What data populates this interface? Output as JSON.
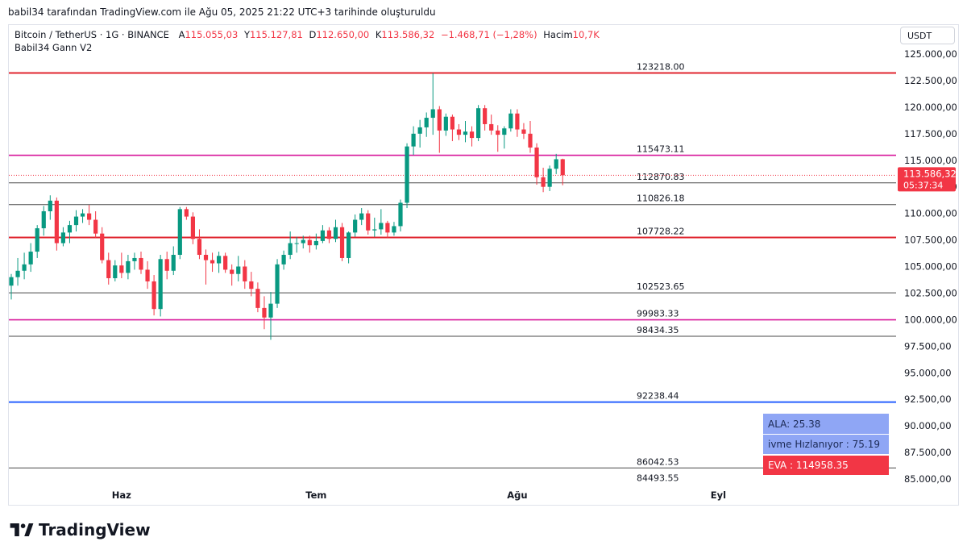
{
  "caption": "babil34 tarafından TradingView.com ile Ağu 05, 2025 21:22 UTC+3 tarihinde oluşturuldu",
  "legend": {
    "symbol": "Bitcoin / TetherUS · 1G · BINANCE",
    "open_label": "A",
    "open": "115.055,03",
    "high_label": "Y",
    "high": "115.127,81",
    "low_label": "D",
    "low": "112.650,00",
    "close_label": "K",
    "close": "113.586,32",
    "change": "−1.468,71 (−1,28%)",
    "volume_label": "Hacim",
    "volume": "10,7K"
  },
  "indicator_name": "Babil34 Gann V2",
  "currency": "USDT",
  "panel": {
    "ala": "ALA: 25.38",
    "ivme": "ivme Hızlanıyor : 75.19",
    "eva": "EVA : 114958.35"
  },
  "brand": "TradingView",
  "colors": {
    "up": "#089981",
    "down": "#f23645",
    "red_level": "#e0262f",
    "magenta_level": "#d81b9c",
    "blue_level": "#2962ff",
    "grey_level": "#4a4a4a",
    "price_tag": "#f23645"
  },
  "chart_data": {
    "type": "candlestick",
    "title": "Bitcoin / TetherUS · 1G · BINANCE",
    "ylim": [
      84000,
      126500
    ],
    "y_ticks": [
      125000,
      122500,
      120000,
      117500,
      115000,
      112500,
      110000,
      107500,
      105000,
      102500,
      100000,
      97500,
      95000,
      92500,
      90000,
      87500,
      85000
    ],
    "y_tick_labels": [
      "125.000,00",
      "122.500,00",
      "120.000,00",
      "117.500,00",
      "115.000,00",
      "112.500,00",
      "110.000,00",
      "107.500,00",
      "105.000,00",
      "102.500,00",
      "100.000,00",
      "97.500,00",
      "95.000,00",
      "92.500,00",
      "90.000,00",
      "87.500,00",
      "85.000,00"
    ],
    "x_labels": [
      {
        "label": "Haz",
        "index": 17
      },
      {
        "label": "Tem",
        "index": 47
      },
      {
        "label": "Ağu",
        "index": 78
      },
      {
        "label": "Eyl",
        "index": 109
      }
    ],
    "last_price": "113.586,32",
    "countdown": "05:37:34",
    "levels": [
      {
        "value": 123218.0,
        "label": "123218.00",
        "kind": "red"
      },
      {
        "value": 115473.11,
        "label": "115473.11",
        "kind": "magenta"
      },
      {
        "value": 112870.83,
        "label": "112870.83",
        "kind": "grey"
      },
      {
        "value": 110826.18,
        "label": "110826.18",
        "kind": "grey"
      },
      {
        "value": 107728.22,
        "label": "107728.22",
        "kind": "red"
      },
      {
        "value": 102523.65,
        "label": "102523.65",
        "kind": "grey"
      },
      {
        "value": 99983.33,
        "label": "99983.33",
        "kind": "magenta"
      },
      {
        "value": 98434.35,
        "label": "98434.35",
        "kind": "grey"
      },
      {
        "value": 92238.44,
        "label": "92238.44",
        "kind": "blue"
      },
      {
        "value": 86042.53,
        "label": "86042.53",
        "kind": "grey"
      },
      {
        "value": 84493.55,
        "label": "84493.55",
        "kind": "none"
      }
    ],
    "candles": [
      [
        103200,
        104300,
        101900,
        104000
      ],
      [
        104000,
        105800,
        103200,
        104600
      ],
      [
        104600,
        106300,
        103800,
        105200
      ],
      [
        105200,
        107200,
        104500,
        106400
      ],
      [
        106400,
        108900,
        105800,
        108600
      ],
      [
        108600,
        110700,
        107900,
        110200
      ],
      [
        110200,
        111700,
        109400,
        111200
      ],
      [
        111200,
        111500,
        106500,
        107200
      ],
      [
        107200,
        108700,
        106900,
        108200
      ],
      [
        108200,
        109300,
        107200,
        108900
      ],
      [
        108900,
        110300,
        108300,
        109700
      ],
      [
        109700,
        110400,
        109100,
        110000
      ],
      [
        110000,
        110800,
        108900,
        109400
      ],
      [
        109400,
        110200,
        107700,
        108100
      ],
      [
        108100,
        108700,
        105300,
        105600
      ],
      [
        105600,
        106300,
        103300,
        103900
      ],
      [
        103900,
        105600,
        103600,
        105100
      ],
      [
        105100,
        106300,
        103900,
        104400
      ],
      [
        104400,
        106100,
        103800,
        105500
      ],
      [
        105500,
        106300,
        104700,
        105800
      ],
      [
        105800,
        106400,
        104300,
        104700
      ],
      [
        104700,
        105500,
        102900,
        103600
      ],
      [
        103600,
        104200,
        100400,
        101000
      ],
      [
        101000,
        106100,
        100300,
        105700
      ],
      [
        105700,
        106400,
        103800,
        104600
      ],
      [
        104600,
        106900,
        104200,
        106100
      ],
      [
        106100,
        110600,
        105700,
        110400
      ],
      [
        110400,
        110600,
        109400,
        109700
      ],
      [
        109700,
        110100,
        107100,
        107600
      ],
      [
        107600,
        108500,
        105700,
        106100
      ],
      [
        106100,
        106600,
        103300,
        105600
      ],
      [
        105600,
        106300,
        104500,
        105300
      ],
      [
        105300,
        106400,
        104400,
        106000
      ],
      [
        106000,
        106300,
        104400,
        104700
      ],
      [
        104700,
        105200,
        103200,
        104300
      ],
      [
        104300,
        106000,
        103600,
        105000
      ],
      [
        105000,
        105600,
        102900,
        103600
      ],
      [
        103600,
        104500,
        102200,
        102900
      ],
      [
        102900,
        103500,
        100700,
        101100
      ],
      [
        101100,
        102200,
        99100,
        100200
      ],
      [
        100200,
        102600,
        98100,
        101500
      ],
      [
        101500,
        105700,
        101100,
        105200
      ],
      [
        105200,
        106500,
        104700,
        106100
      ],
      [
        106100,
        108300,
        105700,
        107200
      ],
      [
        107200,
        107800,
        106300,
        107200
      ],
      [
        107200,
        107900,
        106700,
        107500
      ],
      [
        107500,
        107900,
        106300,
        107000
      ],
      [
        107000,
        108100,
        106600,
        107400
      ],
      [
        107400,
        108900,
        107200,
        108400
      ],
      [
        108400,
        108700,
        107200,
        107600
      ],
      [
        107600,
        109400,
        107300,
        108700
      ],
      [
        108700,
        109100,
        105500,
        105800
      ],
      [
        105800,
        108300,
        105300,
        108200
      ],
      [
        108200,
        109900,
        107800,
        109400
      ],
      [
        109400,
        110500,
        108900,
        110000
      ],
      [
        110000,
        110300,
        108000,
        108400
      ],
      [
        108400,
        109600,
        107800,
        108500
      ],
      [
        108500,
        110400,
        108000,
        109100
      ],
      [
        109100,
        109300,
        107700,
        108200
      ],
      [
        108200,
        109200,
        107900,
        108800
      ],
      [
        108800,
        111300,
        108300,
        111000
      ],
      [
        111000,
        116600,
        110500,
        116300
      ],
      [
        116300,
        118200,
        115500,
        117500
      ],
      [
        117500,
        118800,
        116200,
        118100
      ],
      [
        118100,
        119500,
        117200,
        119000
      ],
      [
        119000,
        123200,
        117400,
        119800
      ],
      [
        119800,
        120100,
        115700,
        117800
      ],
      [
        117800,
        119400,
        117300,
        119100
      ],
      [
        119100,
        119300,
        116800,
        117900
      ],
      [
        117900,
        118400,
        116900,
        117400
      ],
      [
        117400,
        118700,
        116700,
        117700
      ],
      [
        117700,
        118200,
        116300,
        117100
      ],
      [
        117100,
        120200,
        116800,
        119900
      ],
      [
        119900,
        120200,
        117800,
        118400
      ],
      [
        118400,
        119300,
        117400,
        117800
      ],
      [
        117800,
        118300,
        115800,
        117400
      ],
      [
        117400,
        118200,
        116100,
        118000
      ],
      [
        118000,
        119800,
        117700,
        119400
      ],
      [
        119400,
        119800,
        117200,
        117900
      ],
      [
        117900,
        118500,
        117000,
        117500
      ],
      [
        117500,
        118700,
        115700,
        116200
      ],
      [
        116200,
        116600,
        112700,
        113400
      ],
      [
        113400,
        114300,
        112000,
        112500
      ],
      [
        112500,
        114500,
        112100,
        114200
      ],
      [
        114200,
        115600,
        113700,
        115100
      ],
      [
        115100,
        115150,
        112650,
        113586
      ]
    ]
  }
}
